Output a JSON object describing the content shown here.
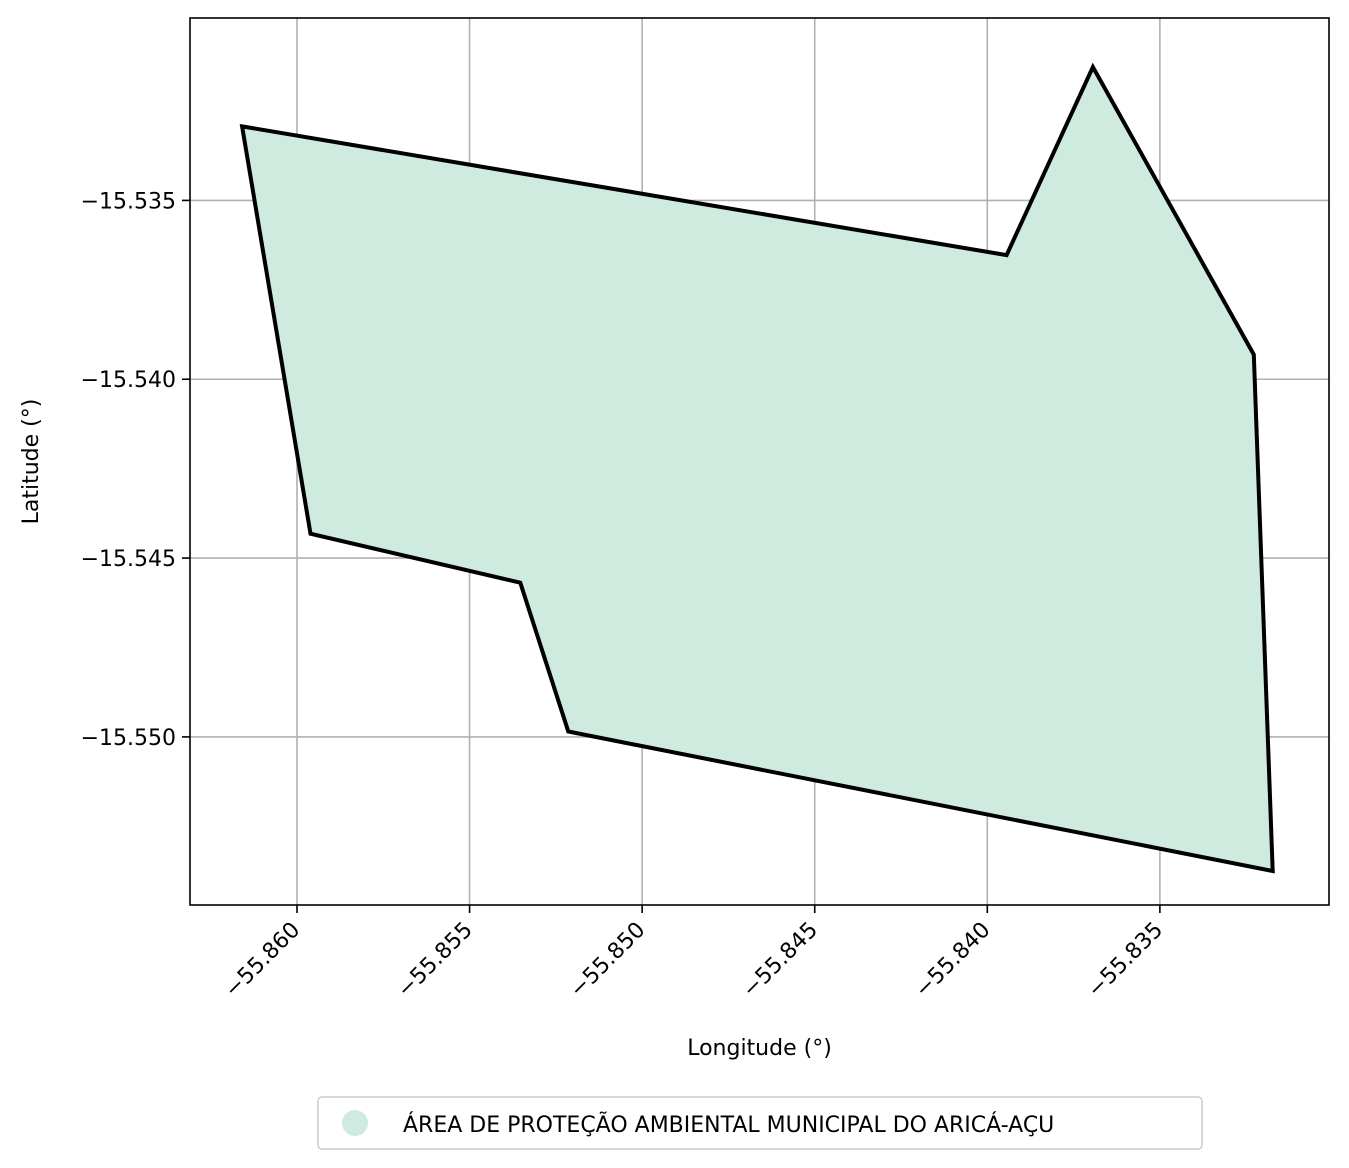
{
  "chart_data": {
    "type": "area",
    "xlabel": "Longitude (°)",
    "ylabel": "Latitude (°)",
    "xlim": [
      -55.8631,
      -55.8301
    ],
    "ylim": [
      -15.5547,
      -15.5299
    ],
    "x_ticks": [
      -55.86,
      -55.855,
      -55.85,
      -55.845,
      -55.84,
      -55.835
    ],
    "x_tick_labels": [
      "−55.860",
      "−55.855",
      "−55.850",
      "−55.845",
      "−55.840",
      "−55.835"
    ],
    "y_ticks": [
      -15.535,
      -15.54,
      -15.545,
      -15.55
    ],
    "y_tick_labels": [
      "−15.535",
      "−15.540",
      "−15.545",
      "−15.550"
    ],
    "grid": true,
    "legend_position": "bottom-center",
    "series": [
      {
        "name": "ÁREA DE PROTEÇÃO AMBIENTAL MUNICIPAL DO ARICÁ-AÇU",
        "fill_color": "#cfeade",
        "edge_color": "#000000",
        "polygon": [
          [
            -55.86159,
            -15.53293
          ],
          [
            -55.83694,
            -15.53127
          ],
          [
            -55.83228,
            -15.53931
          ],
          [
            -55.83173,
            -15.55375
          ],
          [
            -55.85214,
            -15.54985
          ],
          [
            -55.85353,
            -15.54569
          ],
          [
            -55.85961,
            -15.54432
          ],
          [
            -55.86159,
            -15.53293
          ]
        ],
        "polygon_outline_order": [
          [
            -55.86159,
            -15.53293
          ],
          [
            -55.83944,
            -15.53653
          ],
          [
            -55.83694,
            -15.53127
          ],
          [
            -55.83228,
            -15.53931
          ],
          [
            -55.83173,
            -15.55375
          ],
          [
            -55.85214,
            -15.54985
          ],
          [
            -55.85353,
            -15.54569
          ],
          [
            -55.85961,
            -15.54432
          ],
          [
            -55.86159,
            -15.53293
          ]
        ]
      }
    ]
  }
}
